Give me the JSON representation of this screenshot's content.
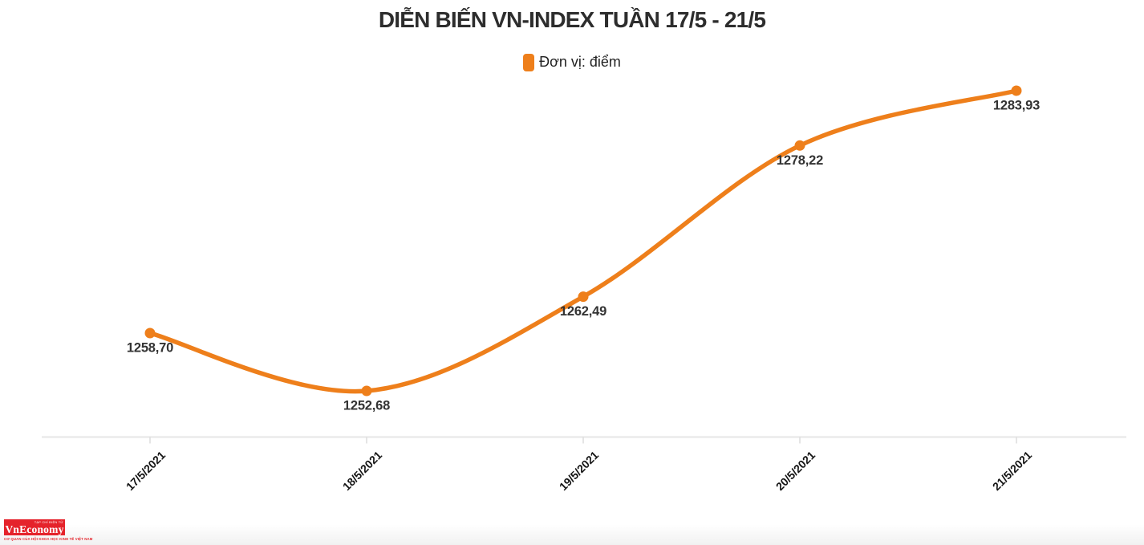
{
  "chart_data": {
    "type": "line",
    "title": "DIỄN BIẾN VN-INDEX TUẦN 17/5 - 21/5",
    "legend_label": "Đơn vị: điểm",
    "legend_position": "top-center",
    "categories": [
      "17/5/2021",
      "18/5/2021",
      "19/5/2021",
      "20/5/2021",
      "21/5/2021"
    ],
    "values": [
      1258.7,
      1252.68,
      1262.49,
      1278.22,
      1283.93
    ],
    "value_labels": [
      "1258,70",
      "1252,68",
      "1262,49",
      "1278,22",
      "1283,93"
    ],
    "ylim": [
      1252.68,
      1283.93
    ],
    "grid": "off",
    "xlabel": "",
    "ylabel": "",
    "line_color": "#EE7F1B",
    "marker_color": "#EE7F1B",
    "value_label_color": "#333333",
    "axis_color": "#e6e6e6"
  },
  "footer": {
    "brand": "VnEconomy",
    "microtext": "TẠP CHÍ ĐIỆN TỬ",
    "tagline": "CƠ QUAN CỦA HỘI KHOA HỌC KINH TẾ VIỆT NAM",
    "logo_bg": "#E5232B"
  }
}
